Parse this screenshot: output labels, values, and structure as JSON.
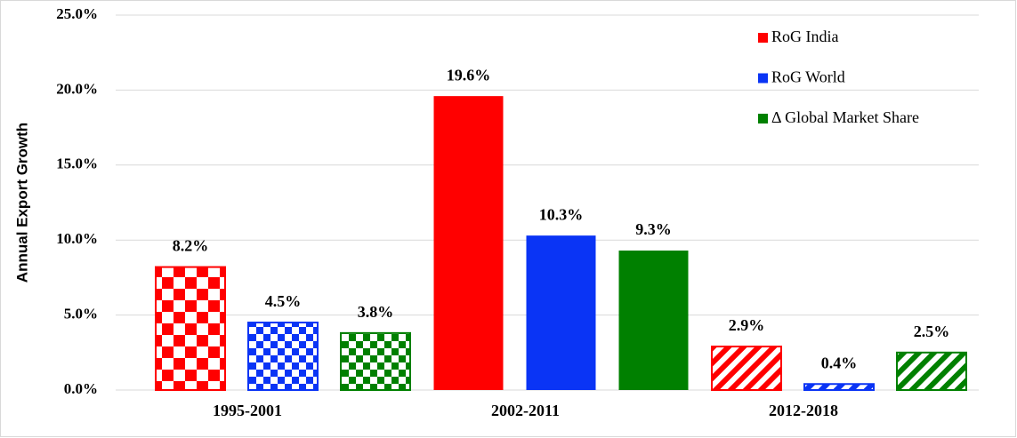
{
  "chart_data": {
    "type": "bar",
    "y_axis_label": "Annual Export Growth",
    "categories": [
      "1995-2001",
      "2002-2011",
      "2012-2018"
    ],
    "category_patterns": [
      "checkerboard",
      "solid",
      "diagonal-hatch"
    ],
    "series": [
      {
        "name": "RoG India",
        "color": "#ff0000",
        "values": [
          8.2,
          19.6,
          2.9
        ],
        "value_labels": [
          "8.2%",
          "19.6%",
          "2.9%"
        ]
      },
      {
        "name": "RoG World",
        "color": "#0a34f5",
        "values": [
          4.5,
          10.3,
          0.4
        ],
        "value_labels": [
          "4.5%",
          "10.3%",
          "0.4%"
        ]
      },
      {
        "name": "Δ Global Market Share",
        "color": "#008000",
        "values": [
          3.8,
          9.3,
          2.5
        ],
        "value_labels": [
          "3.8%",
          "9.3%",
          "2.5%"
        ]
      }
    ],
    "ylim": [
      0,
      25
    ],
    "yticks": [
      {
        "value": 0,
        "label": "0.0%"
      },
      {
        "value": 5,
        "label": "5.0%"
      },
      {
        "value": 10,
        "label": "10.0%"
      },
      {
        "value": 15,
        "label": "15.0%"
      },
      {
        "value": 20,
        "label": "20.0%"
      },
      {
        "value": 25,
        "label": "25.0%"
      }
    ],
    "grid": true,
    "legend_position": "top-right"
  }
}
